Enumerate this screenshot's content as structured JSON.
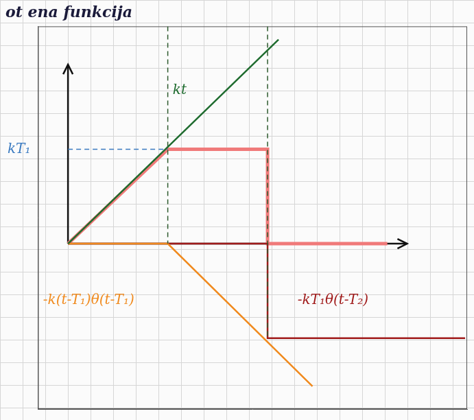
{
  "chart_data": {
    "type": "line",
    "title": "ot ena funkcija",
    "xlim": [
      -0.3,
      4.0
    ],
    "ylim": [
      -1.75,
      2.3
    ],
    "xticks": [],
    "yticks": [
      {
        "value": 1,
        "label": "kT₁"
      }
    ],
    "grid": false,
    "tick_labels": "y",
    "series": [
      {
        "color": "#2d5a2d",
        "line_style": "dashed",
        "x": [
          1,
          1
        ],
        "values": [
          2.3,
          0
        ]
      },
      {
        "color": "#2d5a2d",
        "line_style": "dashed",
        "x": [
          2,
          2
        ],
        "values": [
          2.3,
          -1
        ]
      },
      {
        "color": "#3a7ac0",
        "line_style": "dashed",
        "x": [
          0,
          1
        ],
        "values": [
          1,
          1
        ]
      },
      {
        "name": "kt",
        "color": "#1e6b2e",
        "line_style": "solid",
        "x": [
          0,
          2.11
        ],
        "values": [
          0,
          2.16
        ]
      },
      {
        "name": "-k(t-T₁)θ(t-T₁)",
        "color": "#f08a1e",
        "line_style": "solid",
        "x": [
          0,
          1,
          2.45
        ],
        "values": [
          0,
          0,
          -1.51
        ]
      },
      {
        "name": "-kT₁θ(t-T₂)",
        "color": "#a01a1a",
        "line_style": "solid",
        "x": [
          0,
          2,
          2,
          3.98
        ],
        "values": [
          0,
          0,
          -1,
          -1
        ]
      },
      {
        "color": "#f07a7a",
        "line_style": "solid",
        "x": [
          0,
          1,
          2,
          2,
          3.2
        ],
        "values": [
          0,
          1,
          1,
          0,
          0
        ]
      }
    ],
    "annotations": [
      {
        "text": "kt",
        "x": 1.05,
        "y": 1.62,
        "color": "#1e6b2e"
      },
      {
        "text": "-kT₁θ(t-T₂)",
        "x": 2.3,
        "y": -0.6,
        "color": "#a01a1a"
      },
      {
        "text": "-k(t-T₁)θ(t-T₁)",
        "x": -0.25,
        "y": -0.6,
        "color": "#f08a1e"
      }
    ]
  }
}
